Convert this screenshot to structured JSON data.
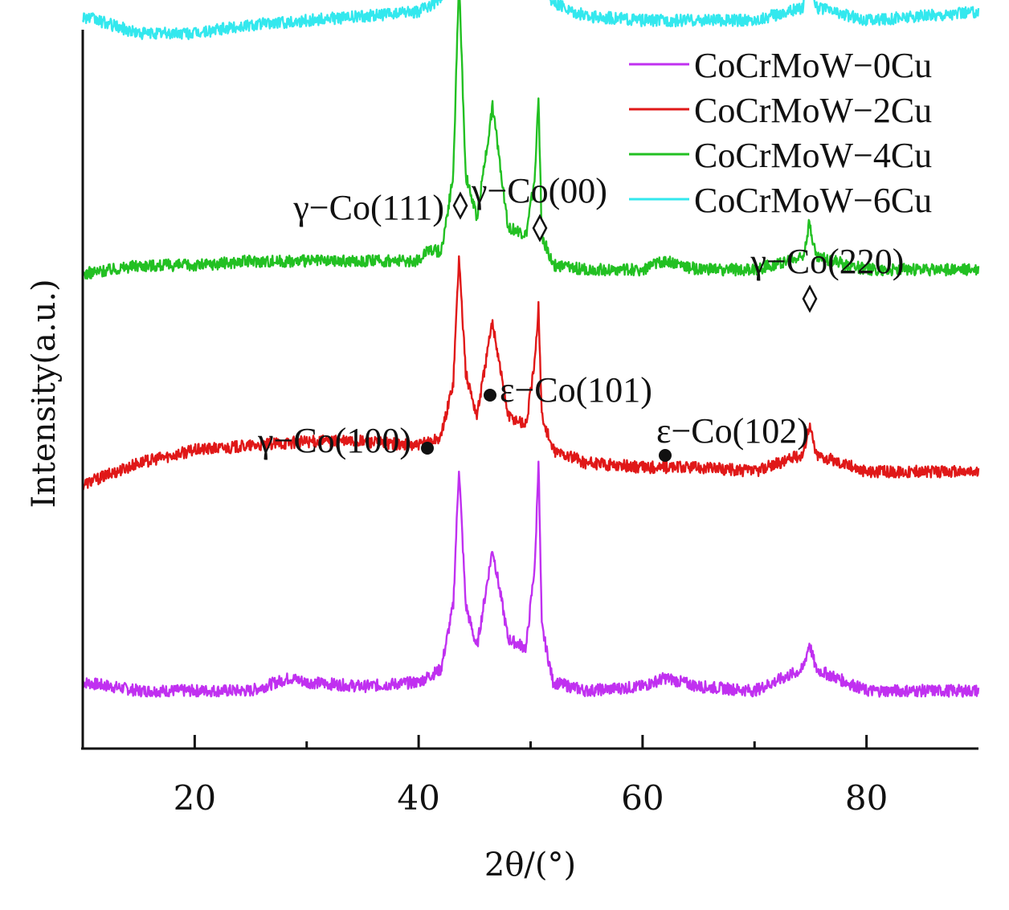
{
  "chart_data": {
    "type": "line",
    "title": "",
    "xlabel": "2θ/(°)",
    "ylabel": "Intensity(a.u.)",
    "xlim": [
      10,
      90
    ],
    "x_ticks": [
      20,
      40,
      60,
      80
    ],
    "y_ticks": [],
    "grid": false,
    "legend_position": "top-right",
    "series": [
      {
        "name": "CoCrMoW−0Cu",
        "color": "#c030f0",
        "baseline": 0.0,
        "x": [
          10,
          15,
          20,
          25,
          28.5,
          30,
          35,
          40,
          42,
          43.1,
          43.6,
          44.2,
          45.2,
          46.6,
          48,
          49.6,
          50.4,
          50.7,
          51,
          52,
          55,
          60,
          62,
          65,
          70,
          74.3,
          74.9,
          75.5,
          80,
          85,
          90
        ],
        "y": [
          0.02,
          0.0,
          0.0,
          0.0,
          0.03,
          0.02,
          0.01,
          0.02,
          0.05,
          0.2,
          0.52,
          0.2,
          0.1,
          0.33,
          0.12,
          0.1,
          0.3,
          0.54,
          0.15,
          0.02,
          0.0,
          0.01,
          0.03,
          0.01,
          0.0,
          0.05,
          0.11,
          0.05,
          0.0,
          0.0,
          0.0
        ]
      },
      {
        "name": "CoCrMoW−2Cu",
        "color": "#e01818",
        "baseline": 0.48,
        "x": [
          10,
          15,
          20,
          25,
          30,
          35,
          40,
          42,
          43.1,
          43.6,
          44.2,
          45.2,
          46.6,
          48,
          49.6,
          50.4,
          50.7,
          51,
          52,
          55,
          60,
          62,
          65,
          70,
          74.3,
          74.9,
          75.5,
          80,
          85,
          90
        ],
        "y": [
          0.48,
          0.53,
          0.56,
          0.57,
          0.58,
          0.58,
          0.57,
          0.59,
          0.72,
          1.01,
          0.74,
          0.64,
          0.86,
          0.64,
          0.62,
          0.77,
          0.9,
          0.64,
          0.56,
          0.53,
          0.52,
          0.52,
          0.52,
          0.51,
          0.55,
          0.62,
          0.55,
          0.51,
          0.51,
          0.51
        ]
      },
      {
        "name": "CoCrMoW−4Cu",
        "color": "#22c022",
        "baseline": 0.97,
        "x": [
          10,
          15,
          20,
          25,
          30,
          35,
          40,
          40.8,
          42,
          43.1,
          43.6,
          44.2,
          45.2,
          46.6,
          48,
          49.6,
          50.4,
          50.7,
          51,
          52,
          55,
          60,
          62,
          65,
          70,
          74.3,
          74.9,
          75.5,
          80,
          85,
          90
        ],
        "y": [
          0.97,
          0.99,
          0.99,
          1.0,
          1.0,
          1.0,
          1.0,
          1.03,
          1.02,
          1.2,
          1.66,
          1.2,
          1.1,
          1.36,
          1.08,
          1.06,
          1.2,
          1.39,
          1.06,
          0.99,
          0.98,
          0.98,
          1.0,
          0.98,
          0.98,
          1.01,
          1.09,
          1.01,
          0.98,
          0.98,
          0.98
        ]
      },
      {
        "name": "CoCrMoW−6Cu",
        "color": "#33e8ee",
        "baseline": 1.55,
        "x": [
          10,
          15,
          20,
          25,
          30,
          35,
          40,
          42,
          43.1,
          43.6,
          44.2,
          45.2,
          46.6,
          48,
          49.6,
          50.4,
          50.7,
          51,
          52,
          55,
          60,
          65,
          70,
          74.3,
          74.9,
          75.5,
          80,
          85,
          90
        ],
        "y": [
          1.57,
          1.53,
          1.53,
          1.55,
          1.56,
          1.57,
          1.58,
          1.61,
          1.8,
          2.14,
          1.8,
          1.72,
          1.87,
          1.66,
          1.64,
          1.86,
          2.07,
          1.66,
          1.6,
          1.57,
          1.56,
          1.56,
          1.56,
          1.59,
          1.68,
          1.59,
          1.56,
          1.57,
          1.58
        ]
      }
    ],
    "annotations": [
      {
        "text": "γ−Co(111)",
        "marker": "diamond",
        "x": 43.6,
        "series": "CoCrMoW−6Cu"
      },
      {
        "text": "γ−Co(00)",
        "marker": "diamond",
        "x": 50.6,
        "series": "CoCrMoW−6Cu"
      },
      {
        "text": "γ−Co(220)",
        "marker": "diamond",
        "x": 74.9,
        "series": "CoCrMoW−6Cu"
      },
      {
        "text": "γ−Co(100)",
        "marker": "circle",
        "x": 40.8,
        "series": "CoCrMoW−4Cu"
      },
      {
        "text": "ε−Co(101)",
        "marker": "circle",
        "x": 46.3,
        "series": "CoCrMoW−4Cu"
      },
      {
        "text": "ε−Co(102)",
        "marker": "circle",
        "x": 62.2,
        "series": "CoCrMoW−4Cu"
      }
    ]
  }
}
